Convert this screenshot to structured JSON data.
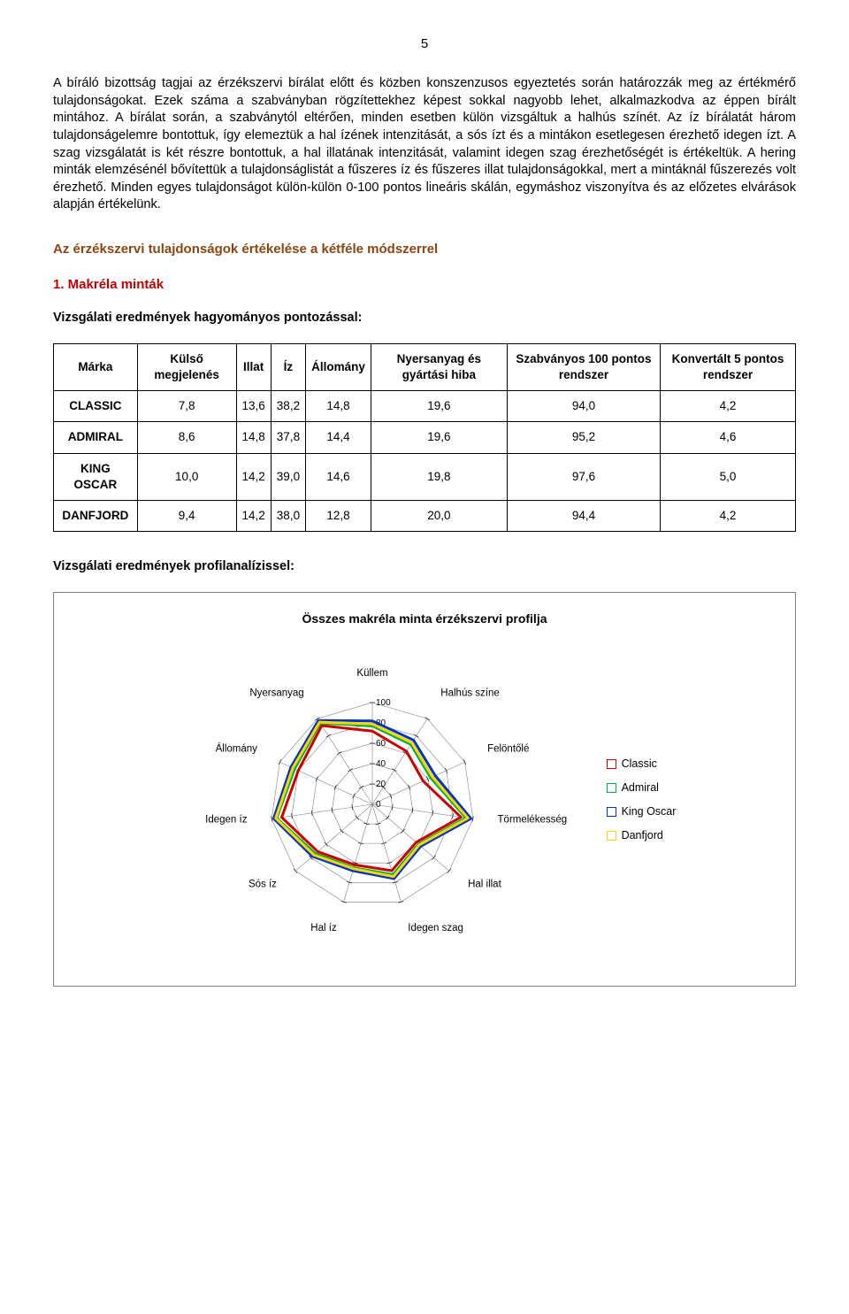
{
  "page_number": "5",
  "body_paragraph": "A bíráló bizottság tagjai az érzékszervi bírálat előtt és közben konszenzusos egyeztetés során határozzák meg az értékmérő tulajdonságokat. Ezek száma a szabványban rögzítettekhez képest sokkal nagyobb lehet, alkalmazkodva az éppen bírált mintához. A bírálat során, a szabványtól eltérően, minden esetben külön vizsgáltuk a halhús színét. Az íz bírálatát három tulajdonságelemre bontottuk, így elemeztük a hal ízének intenzitását, a sós ízt és a mintákon esetlegesen érezhető idegen ízt. A szag vizsgálatát is két részre bontottuk, a hal illatának intenzitását, valamint idegen szag érezhetőségét is értékeltük. A hering minták elemzésénél bővítettük a tulajdonságlistát a fűszeres íz és fűszeres illat tulajdonságokkal, mert a mintáknál fűszerezés volt érezhető. Minden egyes tulajdonságot külön-külön 0-100 pontos lineáris skálán, egymáshoz viszonyítva és az előzetes elvárások alapján értékelünk.",
  "section_heading": "Az érzékszervi tulajdonságok értékelése a kétféle módszerrel",
  "sub1": "1. Makréla minták",
  "results1_title": "Vizsgálati eredmények hagyományos pontozással:",
  "results2_title": "Vizsgálati eredmények profilanalízissel:",
  "table": {
    "headers": [
      "Márka",
      "Külső megjelenés",
      "Illat",
      "Íz",
      "Állomány",
      "Nyersanyag és gyártási hiba",
      "Szabványos 100 pontos rendszer",
      "Konvertált 5 pontos rendszer"
    ],
    "rows": [
      [
        "CLASSIC",
        "7,8",
        "13,6",
        "38,2",
        "14,8",
        "19,6",
        "94,0",
        "4,2"
      ],
      [
        "ADMIRAL",
        "8,6",
        "14,8",
        "37,8",
        "14,4",
        "19,6",
        "95,2",
        "4,6"
      ],
      [
        "KING OSCAR",
        "10,0",
        "14,2",
        "39,0",
        "14,6",
        "19,8",
        "97,6",
        "5,0"
      ],
      [
        "DANFJORD",
        "9,4",
        "14,2",
        "38,0",
        "12,8",
        "20,0",
        "94,4",
        "4,2"
      ]
    ]
  },
  "chart": {
    "type": "radar",
    "title": "Összes makréla minta érzékszervi profilja",
    "axes": [
      "Küllem",
      "Halhús színe",
      "Felöntőlé",
      "Törmelékesség",
      "Hal illat",
      "Idegen szag",
      "Hal íz",
      "Sós íz",
      "Idegen íz",
      "Állomány",
      "Nyersanyag"
    ],
    "ticks": [
      0,
      20,
      40,
      60,
      80,
      100
    ],
    "max": 100,
    "series": [
      {
        "name": "Classic",
        "color": "#cc0000",
        "values": [
          72,
          62,
          55,
          88,
          57,
          68,
          62,
          71,
          90,
          80,
          92
        ]
      },
      {
        "name": "Admiral",
        "color": "#00b33c",
        "values": [
          77,
          70,
          63,
          93,
          60,
          72,
          65,
          74,
          95,
          84,
          95
        ]
      },
      {
        "name": "King Oscar",
        "color": "#0033cc",
        "values": [
          82,
          75,
          68,
          98,
          63,
          76,
          68,
          78,
          98,
          88,
          98
        ]
      },
      {
        "name": "Danfjord",
        "color": "#ffd400",
        "values": [
          79,
          72,
          65,
          95,
          61,
          74,
          66,
          76,
          96,
          86,
          96
        ]
      }
    ],
    "grid_color": "#808080",
    "line_width": 3,
    "bg": "#ffffff",
    "label_fontsize": 11.5,
    "tick_fontsize": 10
  },
  "legend_labels": {
    "classic": "Classic",
    "admiral": "Admiral",
    "king": "King Oscar",
    "danfjord": "Danfjord"
  }
}
